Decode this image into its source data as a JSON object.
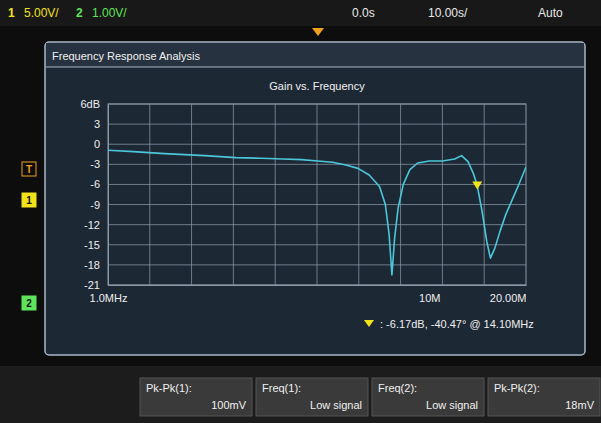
{
  "chart_data": {
    "type": "line",
    "title": "Gain vs. Frequency",
    "x": [
      1.0,
      1.2,
      1.5,
      2.0,
      2.5,
      3.0,
      3.5,
      4.0,
      4.5,
      5.0,
      5.5,
      6.0,
      6.5,
      7.0,
      7.3,
      7.5,
      7.65,
      7.8,
      8.0,
      8.3,
      8.7,
      9.2,
      10.0,
      11.0,
      12.0,
      12.6,
      13.2,
      13.7,
      14.1,
      14.6,
      15.1,
      15.5,
      16.0,
      16.6,
      17.3,
      18.0,
      19.0,
      20.0
    ],
    "values": [
      -0.9,
      -1.1,
      -1.4,
      -1.7,
      -2.0,
      -2.1,
      -2.2,
      -2.3,
      -2.5,
      -2.7,
      -3.1,
      -3.6,
      -4.6,
      -6.3,
      -9.0,
      -13.5,
      -19.5,
      -14.0,
      -9.5,
      -6.0,
      -3.8,
      -2.8,
      -2.5,
      -2.5,
      -2.2,
      -1.7,
      -2.6,
      -4.3,
      -6.17,
      -10.0,
      -14.5,
      -17.0,
      -15.5,
      -13.0,
      -10.5,
      -8.6,
      -6.0,
      -3.4
    ],
    "color": "#4cc6da",
    "log": "x",
    "grid": true,
    "xlim": [
      1,
      20
    ],
    "ylim": [
      -21,
      6
    ],
    "xticks": [
      {
        "value": 1,
        "label": "1.0MHz"
      },
      {
        "value": 10,
        "label": "10M"
      },
      {
        "value": 20,
        "label": "20.00M"
      }
    ],
    "xgrid": [
      1.349,
      1.82,
      2.456,
      3.314,
      4.472,
      6.034,
      8.142,
      10.985,
      14.82
    ],
    "yticks": [
      {
        "value": 6,
        "label": "6dB"
      },
      3,
      0,
      -3,
      -6,
      -9,
      -12,
      -15,
      -18,
      -21
    ],
    "annotations": [
      {
        "text": ": -6.17dB, -40.47° @ 14.10MHz",
        "x": 14.1,
        "y": -6.17
      }
    ]
  },
  "screen": {
    "top_bar": [
      {
        "text": "1",
        "color": "#f2e21c"
      },
      {
        "text": "5.00V/",
        "color": "#f2e21c"
      },
      {
        "text": "2",
        "color": "#5fe35a"
      },
      {
        "text": "1.00V/",
        "color": "#5fe35a"
      },
      {
        "text": "0.0s",
        "color": "#e8e8e8"
      },
      {
        "text": "10.00s/",
        "color": "#e8e8e8"
      },
      {
        "text": "Auto",
        "color": "#e8e8e8"
      }
    ],
    "panel_title": "Frequency Response Analysis",
    "channel_markers": [
      {
        "text": "T",
        "color": "#f0a020"
      },
      {
        "text": "1",
        "color": "#f2e21c"
      },
      {
        "text": "2",
        "color": "#5fe35a"
      }
    ],
    "measurements": [
      {
        "label": "Pk-Pk(1):",
        "value": "100mV"
      },
      {
        "label": "Freq(1):",
        "value": "Low signal"
      },
      {
        "label": "Freq(2):",
        "value": "Low signal"
      },
      {
        "label": "Pk-Pk(2):",
        "value": "18mV"
      }
    ]
  }
}
